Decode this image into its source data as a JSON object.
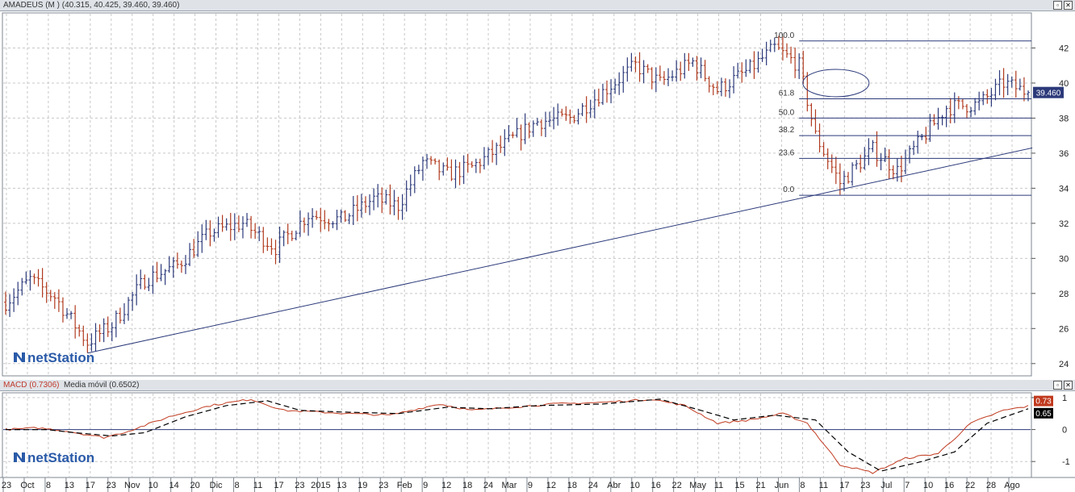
{
  "price_pane": {
    "title": "AMADEUS (M ) (40.315, 40.425, 39.460, 39.460)",
    "last_price_tag": "39.460",
    "logo_text": "netStation"
  },
  "macd_pane": {
    "macd_label": "MACD (0.7306)",
    "ma_label": "Media móvil (0.6502)",
    "macd_tag": "0.73",
    "signal_tag": "0.65",
    "logo_text": "netStation"
  },
  "x_axis_labels": [
    "23",
    "Oct",
    "8",
    "13",
    "17",
    "23",
    "Nov",
    "10",
    "14",
    "20",
    "Dic",
    "8",
    "11",
    "17",
    "23",
    "2015",
    "13",
    "19",
    "23",
    "Feb",
    "9",
    "12",
    "18",
    "24",
    "Mar",
    "9",
    "12",
    "18",
    "24",
    "Abr",
    "10",
    "16",
    "22",
    "May",
    "11",
    "15",
    "21",
    "Jun",
    "8",
    "11",
    "17",
    "23",
    "Jul",
    "7",
    "10",
    "16",
    "22",
    "28",
    "Ago"
  ],
  "colors": {
    "up": "#2c3a7a",
    "down": "#b03a1e",
    "line": "#2c3a7a",
    "grid": "#c8c8c8",
    "tag": "#2c3a7a",
    "macd": "#c0391e",
    "signal": "#000000"
  },
  "chart_data": [
    {
      "type": "ohlc",
      "title": "AMADEUS (M )",
      "y_ticks": [
        24,
        26,
        28,
        30,
        32,
        34,
        36,
        38,
        40,
        42
      ],
      "ylim": [
        23.3,
        44
      ],
      "grid": true,
      "last_value": 39.46,
      "fibonacci_levels": [
        {
          "label": "100.0",
          "value": 42.4
        },
        {
          "label": "61.8",
          "value": 39.1
        },
        {
          "label": "50.0",
          "value": 38.0
        },
        {
          "label": "38.2",
          "value": 37.0
        },
        {
          "label": "23.6",
          "value": 35.7
        },
        {
          "label": "0.0",
          "value": 33.6
        }
      ],
      "trendline": {
        "from_bar": 20,
        "from_value": 24.6,
        "to_bar": 251,
        "to_value": 36.3
      },
      "path_points": [
        {
          "bar": 0,
          "value": 27.5
        },
        {
          "bar": 6,
          "value": 28.8
        },
        {
          "bar": 12,
          "value": 27.8
        },
        {
          "bar": 20,
          "value": 25.2
        },
        {
          "bar": 26,
          "value": 26.2
        },
        {
          "bar": 34,
          "value": 28.8
        },
        {
          "bar": 42,
          "value": 29.6
        },
        {
          "bar": 50,
          "value": 31.5
        },
        {
          "bar": 58,
          "value": 32.0
        },
        {
          "bar": 66,
          "value": 30.6
        },
        {
          "bar": 74,
          "value": 32.5
        },
        {
          "bar": 82,
          "value": 32.2
        },
        {
          "bar": 90,
          "value": 33.4
        },
        {
          "bar": 96,
          "value": 33.0
        },
        {
          "bar": 102,
          "value": 35.5
        },
        {
          "bar": 108,
          "value": 34.8
        },
        {
          "bar": 114,
          "value": 35.2
        },
        {
          "bar": 122,
          "value": 36.5
        },
        {
          "bar": 130,
          "value": 37.8
        },
        {
          "bar": 138,
          "value": 38.0
        },
        {
          "bar": 146,
          "value": 39.5
        },
        {
          "bar": 154,
          "value": 41.0
        },
        {
          "bar": 160,
          "value": 40.0
        },
        {
          "bar": 168,
          "value": 41.2
        },
        {
          "bar": 174,
          "value": 39.6
        },
        {
          "bar": 182,
          "value": 40.8
        },
        {
          "bar": 188,
          "value": 42.0
        },
        {
          "bar": 194,
          "value": 41.0
        },
        {
          "bar": 198,
          "value": 37.0
        },
        {
          "bar": 204,
          "value": 34.3
        },
        {
          "bar": 212,
          "value": 36.2
        },
        {
          "bar": 218,
          "value": 35.0
        },
        {
          "bar": 224,
          "value": 36.8
        },
        {
          "bar": 230,
          "value": 38.6
        },
        {
          "bar": 238,
          "value": 38.8
        },
        {
          "bar": 244,
          "value": 40.0
        },
        {
          "bar": 250,
          "value": 39.46
        }
      ],
      "bar_count": 251
    },
    {
      "type": "line",
      "title": "MACD",
      "y_ticks": [
        -1,
        0,
        1
      ],
      "ylim": [
        -1.5,
        1.15
      ],
      "series": [
        {
          "name": "MACD",
          "points": [
            {
              "bar": 0,
              "value": 0.0
            },
            {
              "bar": 8,
              "value": 0.05
            },
            {
              "bar": 15,
              "value": -0.05
            },
            {
              "bar": 24,
              "value": -0.25
            },
            {
              "bar": 30,
              "value": -0.05
            },
            {
              "bar": 40,
              "value": 0.4
            },
            {
              "bar": 50,
              "value": 0.75
            },
            {
              "bar": 60,
              "value": 0.95
            },
            {
              "bar": 68,
              "value": 0.6
            },
            {
              "bar": 76,
              "value": 0.55
            },
            {
              "bar": 84,
              "value": 0.5
            },
            {
              "bar": 94,
              "value": 0.45
            },
            {
              "bar": 106,
              "value": 0.8
            },
            {
              "bar": 114,
              "value": 0.6
            },
            {
              "bar": 124,
              "value": 0.7
            },
            {
              "bar": 134,
              "value": 0.8
            },
            {
              "bar": 146,
              "value": 0.85
            },
            {
              "bar": 158,
              "value": 0.95
            },
            {
              "bar": 166,
              "value": 0.75
            },
            {
              "bar": 174,
              "value": 0.2
            },
            {
              "bar": 182,
              "value": 0.3
            },
            {
              "bar": 190,
              "value": 0.5
            },
            {
              "bar": 196,
              "value": 0.2
            },
            {
              "bar": 204,
              "value": -1.1
            },
            {
              "bar": 212,
              "value": -1.35
            },
            {
              "bar": 220,
              "value": -0.9
            },
            {
              "bar": 228,
              "value": -0.75
            },
            {
              "bar": 236,
              "value": 0.2
            },
            {
              "bar": 244,
              "value": 0.6
            },
            {
              "bar": 250,
              "value": 0.73
            }
          ]
        },
        {
          "name": "Media móvil",
          "points": [
            {
              "bar": 0,
              "value": 0.0
            },
            {
              "bar": 10,
              "value": 0.0
            },
            {
              "bar": 17,
              "value": -0.1
            },
            {
              "bar": 26,
              "value": -0.2
            },
            {
              "bar": 34,
              "value": -0.1
            },
            {
              "bar": 44,
              "value": 0.4
            },
            {
              "bar": 54,
              "value": 0.75
            },
            {
              "bar": 64,
              "value": 0.9
            },
            {
              "bar": 72,
              "value": 0.6
            },
            {
              "bar": 82,
              "value": 0.55
            },
            {
              "bar": 96,
              "value": 0.5
            },
            {
              "bar": 108,
              "value": 0.7
            },
            {
              "bar": 118,
              "value": 0.65
            },
            {
              "bar": 130,
              "value": 0.75
            },
            {
              "bar": 146,
              "value": 0.8
            },
            {
              "bar": 160,
              "value": 0.95
            },
            {
              "bar": 170,
              "value": 0.6
            },
            {
              "bar": 178,
              "value": 0.3
            },
            {
              "bar": 188,
              "value": 0.45
            },
            {
              "bar": 198,
              "value": 0.3
            },
            {
              "bar": 206,
              "value": -0.7
            },
            {
              "bar": 214,
              "value": -1.3
            },
            {
              "bar": 224,
              "value": -1.0
            },
            {
              "bar": 232,
              "value": -0.7
            },
            {
              "bar": 240,
              "value": 0.2
            },
            {
              "bar": 250,
              "value": 0.65
            }
          ]
        }
      ],
      "zero_line": true,
      "grid": true
    }
  ]
}
